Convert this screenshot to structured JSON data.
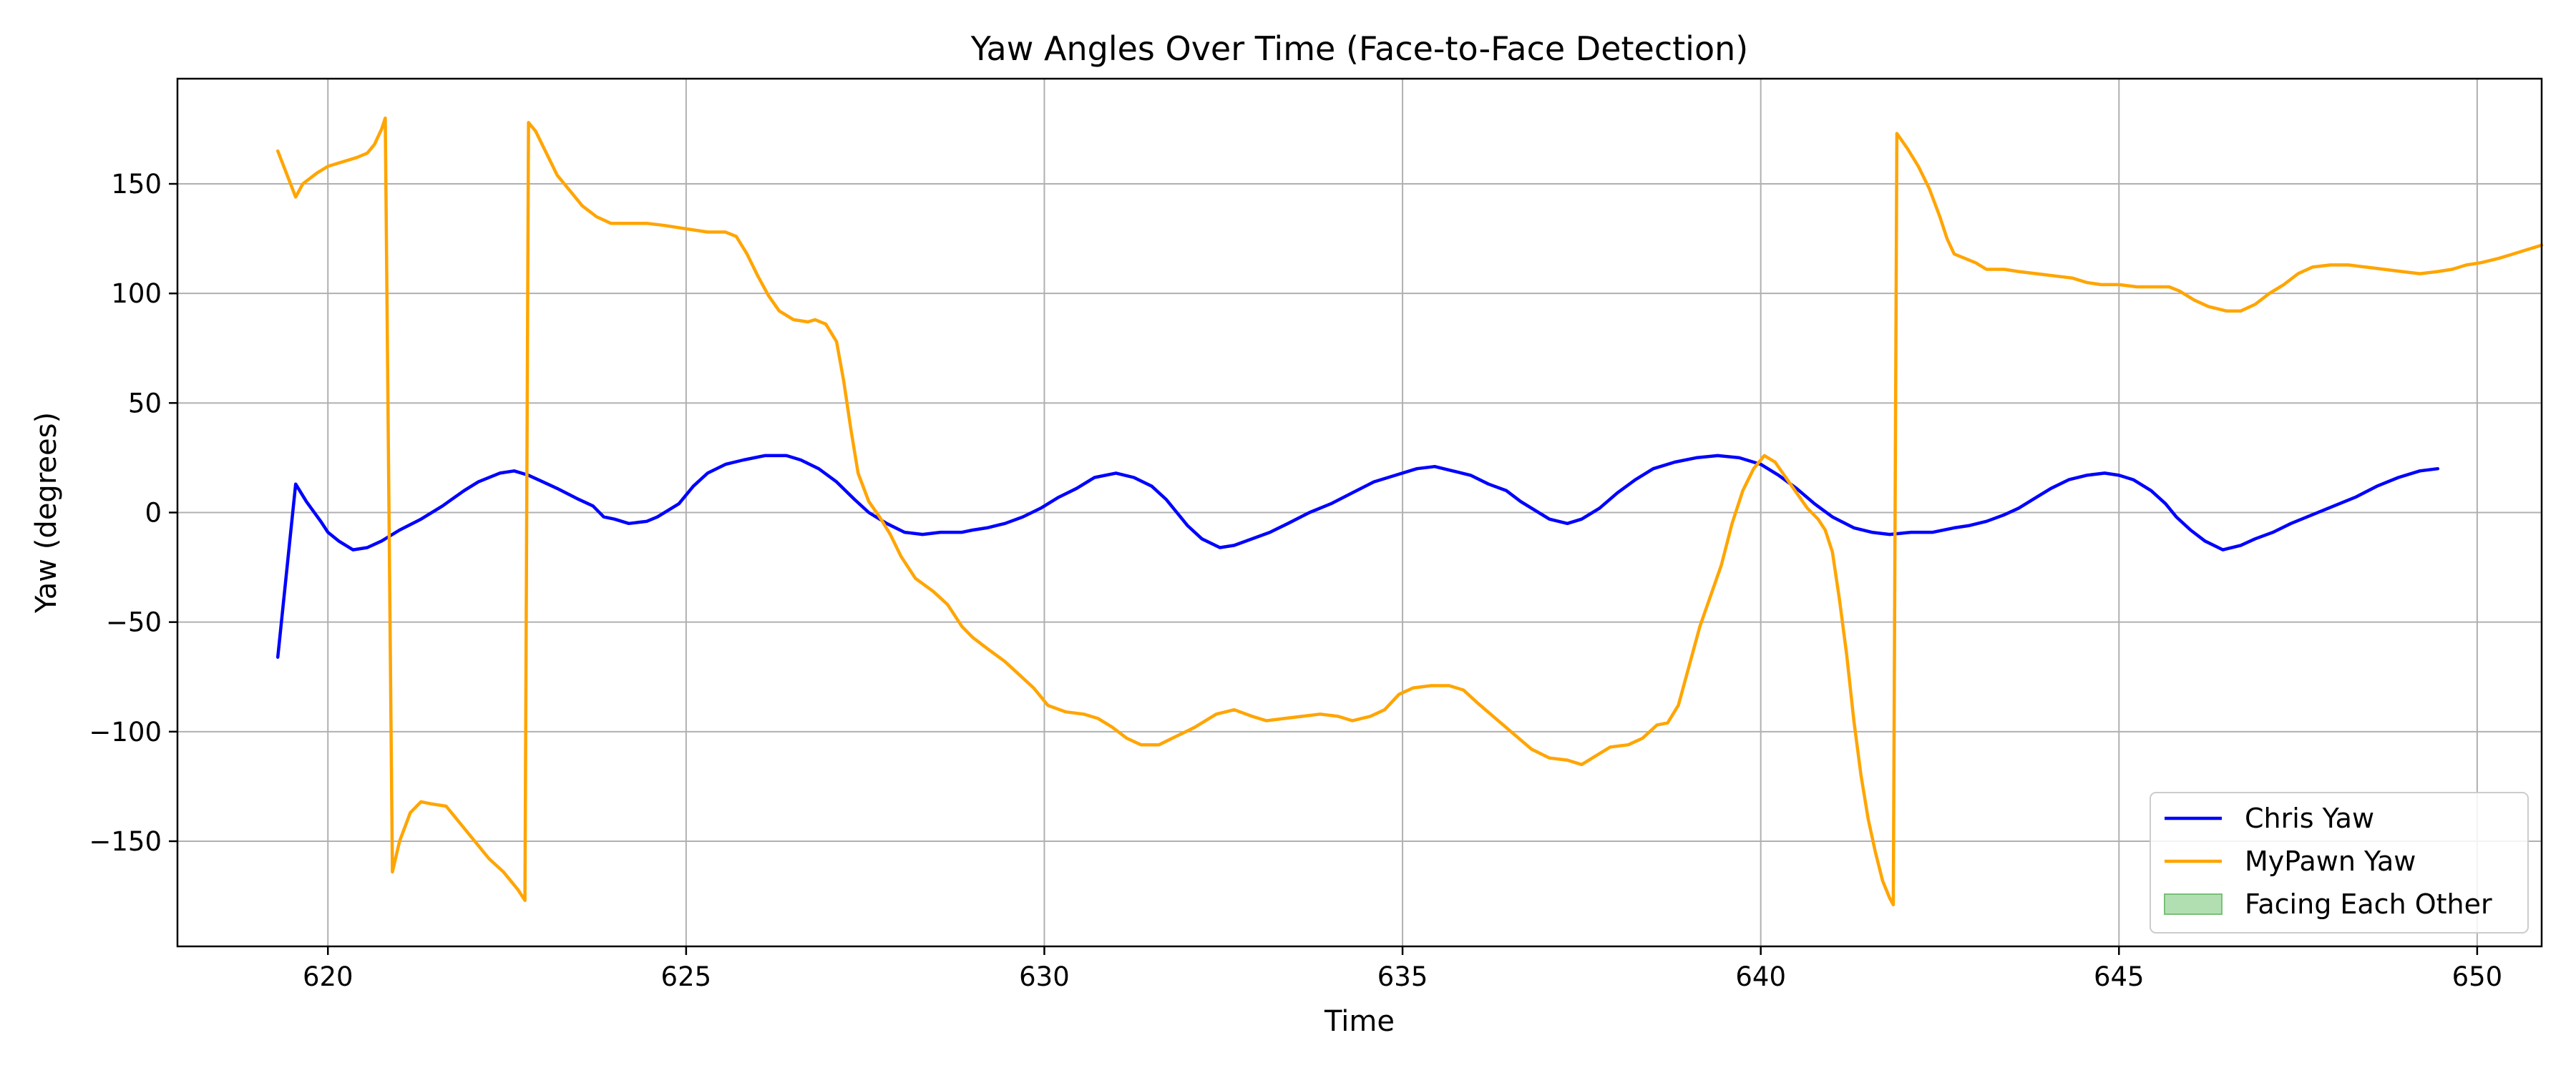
{
  "chart_data": {
    "type": "line",
    "title": "Yaw Angles Over Time (Face-to-Face Detection)",
    "xlabel": "Time",
    "ylabel": "Yaw (degrees)",
    "xlim": [
      617.9,
      650.9
    ],
    "ylim": [
      -198,
      198
    ],
    "xticks": [
      620,
      625,
      630,
      635,
      640,
      645,
      650
    ],
    "yticks": [
      -150,
      -100,
      -50,
      0,
      50,
      100,
      150
    ],
    "grid": true,
    "legend_position": "lower-right",
    "series": [
      {
        "name": "Chris Yaw",
        "color": "#0000ff",
        "points": [
          [
            619.3,
            -66
          ],
          [
            619.55,
            13
          ],
          [
            619.7,
            5
          ],
          [
            619.9,
            -4
          ],
          [
            620.0,
            -9
          ],
          [
            620.15,
            -13
          ],
          [
            620.35,
            -17
          ],
          [
            620.55,
            -16
          ],
          [
            620.75,
            -13
          ],
          [
            621.0,
            -8
          ],
          [
            621.3,
            -3
          ],
          [
            621.6,
            3
          ],
          [
            621.9,
            10
          ],
          [
            622.1,
            14
          ],
          [
            622.4,
            18
          ],
          [
            622.6,
            19
          ],
          [
            622.8,
            17
          ],
          [
            623.0,
            14
          ],
          [
            623.2,
            11
          ],
          [
            623.5,
            6
          ],
          [
            623.7,
            3
          ],
          [
            623.85,
            -2
          ],
          [
            624.0,
            -3
          ],
          [
            624.2,
            -5
          ],
          [
            624.45,
            -4
          ],
          [
            624.6,
            -2
          ],
          [
            624.9,
            4
          ],
          [
            625.1,
            12
          ],
          [
            625.3,
            18
          ],
          [
            625.55,
            22
          ],
          [
            625.8,
            24
          ],
          [
            626.1,
            26
          ],
          [
            626.4,
            26
          ],
          [
            626.6,
            24
          ],
          [
            626.85,
            20
          ],
          [
            627.1,
            14
          ],
          [
            627.35,
            6
          ],
          [
            627.55,
            0
          ],
          [
            627.8,
            -5
          ],
          [
            628.05,
            -9
          ],
          [
            628.3,
            -10
          ],
          [
            628.55,
            -9
          ],
          [
            628.85,
            -9
          ],
          [
            629.0,
            -8
          ],
          [
            629.2,
            -7
          ],
          [
            629.45,
            -5
          ],
          [
            629.7,
            -2
          ],
          [
            629.95,
            2
          ],
          [
            630.2,
            7
          ],
          [
            630.45,
            11
          ],
          [
            630.7,
            16
          ],
          [
            631.0,
            18
          ],
          [
            631.25,
            16
          ],
          [
            631.5,
            12
          ],
          [
            631.7,
            6
          ],
          [
            631.85,
            0
          ],
          [
            632.0,
            -6
          ],
          [
            632.2,
            -12
          ],
          [
            632.45,
            -16
          ],
          [
            632.65,
            -15
          ],
          [
            632.9,
            -12
          ],
          [
            633.15,
            -9
          ],
          [
            633.4,
            -5
          ],
          [
            633.7,
            0
          ],
          [
            634.0,
            4
          ],
          [
            634.3,
            9
          ],
          [
            634.6,
            14
          ],
          [
            634.9,
            17
          ],
          [
            635.2,
            20
          ],
          [
            635.45,
            21
          ],
          [
            635.7,
            19
          ],
          [
            635.95,
            17
          ],
          [
            636.2,
            13
          ],
          [
            636.45,
            10
          ],
          [
            636.65,
            5
          ],
          [
            636.85,
            1
          ],
          [
            637.05,
            -3
          ],
          [
            637.3,
            -5
          ],
          [
            637.5,
            -3
          ],
          [
            637.75,
            2
          ],
          [
            638.0,
            9
          ],
          [
            638.25,
            15
          ],
          [
            638.5,
            20
          ],
          [
            638.8,
            23
          ],
          [
            639.1,
            25
          ],
          [
            639.4,
            26
          ],
          [
            639.7,
            25
          ],
          [
            640.0,
            22
          ],
          [
            640.25,
            17
          ],
          [
            640.5,
            11
          ],
          [
            640.75,
            4
          ],
          [
            641.0,
            -2
          ],
          [
            641.3,
            -7
          ],
          [
            641.55,
            -9
          ],
          [
            641.8,
            -10
          ],
          [
            642.1,
            -9
          ],
          [
            642.4,
            -9
          ],
          [
            642.7,
            -7
          ],
          [
            642.9,
            -6
          ],
          [
            643.15,
            -4
          ],
          [
            643.4,
            -1
          ],
          [
            643.6,
            2
          ],
          [
            643.85,
            7
          ],
          [
            644.05,
            11
          ],
          [
            644.3,
            15
          ],
          [
            644.55,
            17
          ],
          [
            644.8,
            18
          ],
          [
            645.0,
            17
          ],
          [
            645.2,
            15
          ],
          [
            645.45,
            10
          ],
          [
            645.65,
            4
          ],
          [
            645.8,
            -2
          ],
          [
            646.0,
            -8
          ],
          [
            646.2,
            -13
          ],
          [
            646.45,
            -17
          ],
          [
            646.7,
            -15
          ],
          [
            646.9,
            -12
          ],
          [
            647.15,
            -9
          ],
          [
            647.4,
            -5
          ],
          [
            647.7,
            -1
          ],
          [
            648.0,
            3
          ],
          [
            648.3,
            7
          ],
          [
            648.6,
            12
          ],
          [
            648.9,
            16
          ],
          [
            649.2,
            19
          ],
          [
            649.45,
            20
          ]
        ]
      },
      {
        "name": "MyPawn Yaw",
        "color": "#ffa500",
        "points": [
          [
            619.3,
            165
          ],
          [
            619.55,
            144
          ],
          [
            619.65,
            150
          ],
          [
            619.85,
            155
          ],
          [
            620.0,
            158
          ],
          [
            620.2,
            160
          ],
          [
            620.4,
            162
          ],
          [
            620.55,
            164
          ],
          [
            620.65,
            168
          ],
          [
            620.75,
            175
          ],
          [
            620.8,
            180
          ],
          [
            620.9,
            -164
          ],
          [
            621.0,
            -150
          ],
          [
            621.15,
            -137
          ],
          [
            621.3,
            -132
          ],
          [
            621.45,
            -133
          ],
          [
            621.65,
            -134
          ],
          [
            621.85,
            -142
          ],
          [
            622.05,
            -150
          ],
          [
            622.25,
            -158
          ],
          [
            622.45,
            -164
          ],
          [
            622.65,
            -172
          ],
          [
            622.75,
            -177
          ],
          [
            622.8,
            178
          ],
          [
            622.9,
            174
          ],
          [
            623.05,
            164
          ],
          [
            623.2,
            154
          ],
          [
            623.4,
            146
          ],
          [
            623.55,
            140
          ],
          [
            623.75,
            135
          ],
          [
            623.95,
            132
          ],
          [
            624.2,
            132
          ],
          [
            624.45,
            132
          ],
          [
            624.7,
            131
          ],
          [
            624.9,
            130
          ],
          [
            625.1,
            129
          ],
          [
            625.3,
            128
          ],
          [
            625.55,
            128
          ],
          [
            625.7,
            126
          ],
          [
            625.85,
            118
          ],
          [
            626.0,
            108
          ],
          [
            626.15,
            99
          ],
          [
            626.3,
            92
          ],
          [
            626.5,
            88
          ],
          [
            626.7,
            87
          ],
          [
            626.8,
            88
          ],
          [
            626.95,
            86
          ],
          [
            627.1,
            78
          ],
          [
            627.2,
            60
          ],
          [
            627.3,
            38
          ],
          [
            627.4,
            18
          ],
          [
            627.55,
            5
          ],
          [
            627.7,
            -2
          ],
          [
            627.85,
            -10
          ],
          [
            628.0,
            -20
          ],
          [
            628.2,
            -30
          ],
          [
            628.45,
            -36
          ],
          [
            628.65,
            -42
          ],
          [
            628.85,
            -52
          ],
          [
            629.0,
            -57
          ],
          [
            629.2,
            -62
          ],
          [
            629.45,
            -68
          ],
          [
            629.65,
            -74
          ],
          [
            629.85,
            -80
          ],
          [
            630.05,
            -88
          ],
          [
            630.3,
            -91
          ],
          [
            630.55,
            -92
          ],
          [
            630.75,
            -94
          ],
          [
            630.95,
            -98
          ],
          [
            631.15,
            -103
          ],
          [
            631.35,
            -106
          ],
          [
            631.6,
            -106
          ],
          [
            631.85,
            -102
          ],
          [
            632.1,
            -98
          ],
          [
            632.4,
            -92
          ],
          [
            632.65,
            -90
          ],
          [
            632.9,
            -93
          ],
          [
            633.1,
            -95
          ],
          [
            633.35,
            -94
          ],
          [
            633.6,
            -93
          ],
          [
            633.85,
            -92
          ],
          [
            634.1,
            -93
          ],
          [
            634.3,
            -95
          ],
          [
            634.55,
            -93
          ],
          [
            634.75,
            -90
          ],
          [
            634.95,
            -83
          ],
          [
            635.15,
            -80
          ],
          [
            635.4,
            -79
          ],
          [
            635.65,
            -79
          ],
          [
            635.85,
            -81
          ],
          [
            636.05,
            -87
          ],
          [
            636.3,
            -94
          ],
          [
            636.55,
            -101
          ],
          [
            636.8,
            -108
          ],
          [
            637.05,
            -112
          ],
          [
            637.3,
            -113
          ],
          [
            637.5,
            -115
          ],
          [
            637.7,
            -111
          ],
          [
            637.9,
            -107
          ],
          [
            638.15,
            -106
          ],
          [
            638.35,
            -103
          ],
          [
            638.55,
            -97
          ],
          [
            638.7,
            -96
          ],
          [
            638.85,
            -88
          ],
          [
            639.0,
            -70
          ],
          [
            639.15,
            -52
          ],
          [
            639.3,
            -38
          ],
          [
            639.45,
            -24
          ],
          [
            639.6,
            -5
          ],
          [
            639.75,
            10
          ],
          [
            639.9,
            20
          ],
          [
            640.05,
            26
          ],
          [
            640.2,
            23
          ],
          [
            640.35,
            16
          ],
          [
            640.5,
            9
          ],
          [
            640.65,
            2
          ],
          [
            640.8,
            -3
          ],
          [
            640.9,
            -8
          ],
          [
            641.0,
            -18
          ],
          [
            641.1,
            -40
          ],
          [
            641.2,
            -65
          ],
          [
            641.3,
            -95
          ],
          [
            641.4,
            -120
          ],
          [
            641.5,
            -140
          ],
          [
            641.6,
            -155
          ],
          [
            641.7,
            -168
          ],
          [
            641.8,
            -176
          ],
          [
            641.85,
            -179
          ],
          [
            641.9,
            173
          ],
          [
            642.05,
            166
          ],
          [
            642.2,
            158
          ],
          [
            642.35,
            148
          ],
          [
            642.5,
            135
          ],
          [
            642.6,
            125
          ],
          [
            642.7,
            118
          ],
          [
            642.85,
            116
          ],
          [
            643.0,
            114
          ],
          [
            643.15,
            111
          ],
          [
            643.4,
            111
          ],
          [
            643.6,
            110
          ],
          [
            643.85,
            109
          ],
          [
            644.1,
            108
          ],
          [
            644.35,
            107
          ],
          [
            644.55,
            105
          ],
          [
            644.75,
            104
          ],
          [
            645.0,
            104
          ],
          [
            645.25,
            103
          ],
          [
            645.5,
            103
          ],
          [
            645.7,
            103
          ],
          [
            645.85,
            101
          ],
          [
            646.05,
            97
          ],
          [
            646.25,
            94
          ],
          [
            646.5,
            92
          ],
          [
            646.7,
            92
          ],
          [
            646.9,
            95
          ],
          [
            647.1,
            100
          ],
          [
            647.3,
            104
          ],
          [
            647.5,
            109
          ],
          [
            647.7,
            112
          ],
          [
            647.95,
            113
          ],
          [
            648.2,
            113
          ],
          [
            648.45,
            112
          ],
          [
            648.7,
            111
          ],
          [
            648.95,
            110
          ],
          [
            649.2,
            109
          ],
          [
            649.45,
            110
          ],
          [
            649.65,
            111
          ],
          [
            649.85,
            113
          ],
          [
            650.05,
            114
          ],
          [
            650.3,
            116
          ],
          [
            650.5,
            118
          ],
          [
            650.7,
            120
          ],
          [
            650.9,
            122
          ]
        ]
      }
    ],
    "legend_entries": [
      {
        "name": "Chris Yaw",
        "kind": "line",
        "color": "#0000ff"
      },
      {
        "name": "MyPawn Yaw",
        "kind": "line",
        "color": "#ffa500"
      },
      {
        "name": "Facing Each Other",
        "kind": "patch",
        "color": "#b2dfb2",
        "edge": "#79c079"
      }
    ]
  }
}
